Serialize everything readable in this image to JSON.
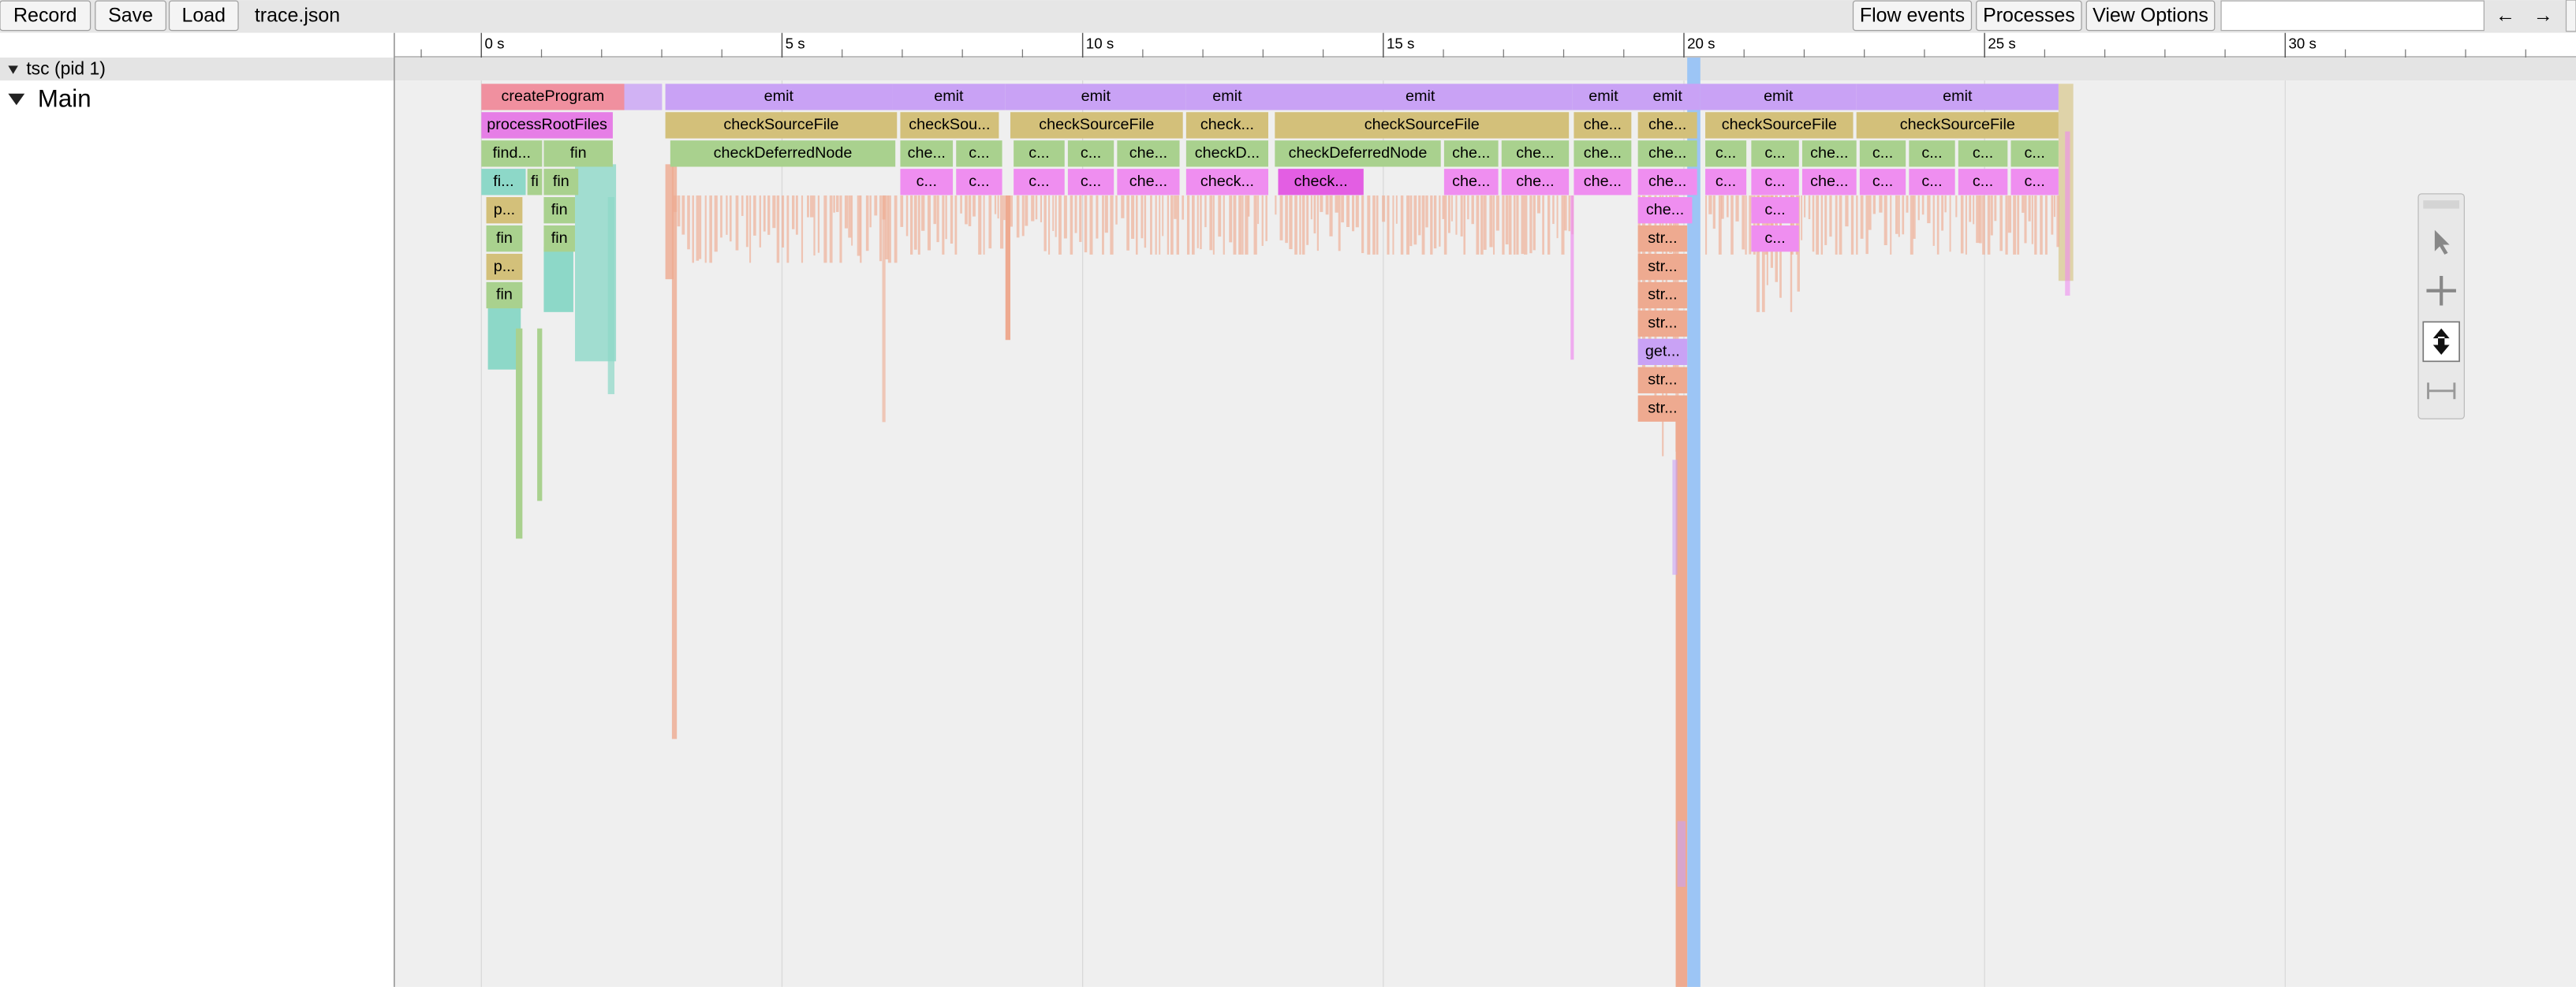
{
  "toolbar": {
    "buttons": [
      "Record",
      "Save",
      "Load"
    ],
    "filename": "trace.json",
    "right_buttons": [
      "Flow events",
      "Processes",
      "View Options"
    ],
    "nav": [
      "←",
      "→"
    ]
  },
  "ruler": {
    "labels": [
      "0 s",
      "5 s",
      "10 s",
      "15 s",
      "20 s",
      "25 s",
      "30 s"
    ]
  },
  "process": {
    "label": "tsc (pid 1)",
    "threads": [
      {
        "label": "Main",
        "rows": [
          [
            "createProgram",
            "emit",
            "emit",
            "emit",
            "emit",
            "emit",
            "emit",
            "emit",
            "emit",
            "emit"
          ],
          [
            "processRootFiles",
            "checkSourceFile",
            "checkSou...",
            "checkSourceFile",
            "check...",
            "checkSourceFile",
            "che...",
            "che...",
            "checkSourceFile",
            "checkSourceFile"
          ],
          [
            "find...",
            "fin",
            "checkDeferredNode",
            "che...",
            "c...",
            "c...",
            "c...",
            "che...",
            "checkD...",
            "checkDeferredNode",
            "che...",
            "che...",
            "che...",
            "che...",
            "c...",
            "c...",
            "che...",
            "c...",
            "c...",
            "c...",
            "c..."
          ],
          [
            "fi...",
            "fi",
            "fin",
            "c...",
            "c...",
            "c...",
            "c...",
            "che...",
            "check...",
            "check...",
            "che...",
            "che...",
            "che...",
            "che...",
            "c...",
            "c...",
            "che...",
            "c...",
            "c...",
            "c...",
            "c..."
          ],
          [
            "p...",
            "fin",
            "che...",
            "c..."
          ],
          [
            "fin",
            "fin",
            "str...",
            "c..."
          ],
          [
            "p...",
            "str..."
          ],
          [
            "fin",
            "str..."
          ],
          [
            "str..."
          ],
          [
            "get..."
          ],
          [
            "str..."
          ],
          [
            "str..."
          ]
        ]
      }
    ]
  }
}
